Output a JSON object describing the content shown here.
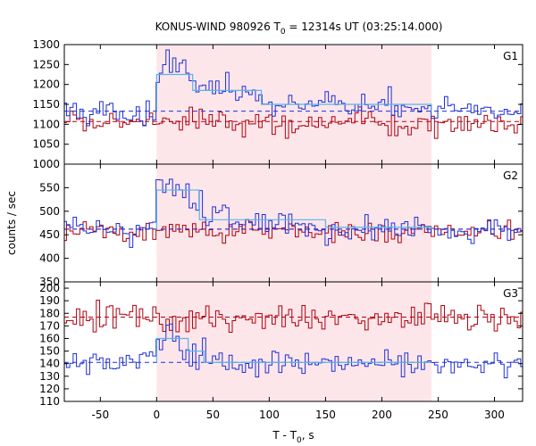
{
  "chart_data": {
    "type": "line",
    "title": "KONUS-WIND 980926 T0 = 12314s UT (03:25:14.000)",
    "title_parts": {
      "pre": "KONUS-WIND 980926 T",
      "sub": "0",
      "post": " = 12314s UT (03:25:14.000)"
    },
    "xlabel_parts": {
      "pre": "T - T",
      "sub": "0",
      "post": ", s"
    },
    "ylabel": "counts / sec",
    "xlim": [
      -82,
      325
    ],
    "xticks": [
      "-50",
      "0",
      "50",
      "100",
      "150",
      "200",
      "250",
      "300"
    ],
    "x_tick_values": [
      -50,
      0,
      50,
      100,
      150,
      200,
      250,
      300
    ],
    "shaded_interval": [
      0,
      244
    ],
    "bin_width": 2.944,
    "colors": {
      "source": "#1f2fd6",
      "background": "#b0000e",
      "model": "#5ab4e8",
      "shade": "#fde6ea"
    },
    "panels": [
      {
        "label": "G1",
        "ylim": [
          1000,
          1300
        ],
        "yticks": [
          "1000",
          "1050",
          "1100",
          "1150",
          "1200",
          "1250",
          "1300"
        ],
        "y_tick_values": [
          1000,
          1050,
          1100,
          1150,
          1200,
          1250,
          1300
        ],
        "source_base": 1132,
        "source_noise": 15,
        "background_base": 1105,
        "background_noise": 15,
        "source_fit_level": 1133,
        "background_fit_level": 1107,
        "pulse_profile": [
          {
            "x0": 0,
            "x1": 10,
            "level": 1225
          },
          {
            "x0": 10,
            "x1": 30,
            "level": 1230
          },
          {
            "x0": 30,
            "x1": 50,
            "level": 1200
          },
          {
            "x0": 50,
            "x1": 70,
            "level": 1190
          },
          {
            "x0": 70,
            "x1": 90,
            "level": 1175
          },
          {
            "x0": 90,
            "x1": 100,
            "level": 1165
          },
          {
            "x0": 100,
            "x1": 244,
            "level": 1148
          }
        ],
        "model_steps": [
          {
            "x0": 0,
            "x1": 32,
            "level": 1225
          },
          {
            "x0": 32,
            "x1": 93,
            "level": 1185
          },
          {
            "x0": 93,
            "x1": 244,
            "level": 1150
          }
        ]
      },
      {
        "label": "G2",
        "ylim": [
          350,
          600
        ],
        "yticks": [
          "350",
          "400",
          "450",
          "500",
          "550"
        ],
        "y_tick_values": [
          350,
          400,
          450,
          500,
          550
        ],
        "source_base": 461,
        "source_noise": 12,
        "background_base": 458,
        "background_noise": 11,
        "source_fit_level": 462,
        "background_fit_level": 462,
        "pulse_profile": [
          {
            "x0": 0,
            "x1": 12,
            "level": 545
          },
          {
            "x0": 12,
            "x1": 28,
            "level": 560
          },
          {
            "x0": 28,
            "x1": 40,
            "level": 520
          },
          {
            "x0": 40,
            "x1": 60,
            "level": 490
          },
          {
            "x0": 60,
            "x1": 100,
            "level": 480
          },
          {
            "x0": 100,
            "x1": 150,
            "level": 470
          }
        ],
        "model_steps": [
          {
            "x0": 0,
            "x1": 38,
            "level": 545
          },
          {
            "x0": 38,
            "x1": 150,
            "level": 482
          },
          {
            "x0": 150,
            "x1": 244,
            "level": 466
          }
        ]
      },
      {
        "label": "G3",
        "ylim": [
          110,
          205
        ],
        "yticks": [
          "110",
          "120",
          "130",
          "140",
          "150",
          "160",
          "170",
          "180",
          "190",
          "200"
        ],
        "y_tick_values": [
          110,
          120,
          130,
          140,
          150,
          160,
          170,
          180,
          190,
          200
        ],
        "source_base": 140,
        "source_noise": 5,
        "background_base": 177,
        "background_noise": 6,
        "source_fit_level": 141,
        "background_fit_level": 177,
        "pulse_profile": [
          {
            "x0": 0,
            "x1": 10,
            "level": 162
          },
          {
            "x0": 10,
            "x1": 20,
            "level": 165
          },
          {
            "x0": 20,
            "x1": 35,
            "level": 152
          },
          {
            "x0": 35,
            "x1": 60,
            "level": 144
          }
        ],
        "model_steps": [
          {
            "x0": 0,
            "x1": 28,
            "level": 160
          },
          {
            "x0": 28,
            "x1": 42,
            "level": 150
          },
          {
            "x0": 42,
            "x1": 244,
            "level": 141
          }
        ]
      }
    ]
  }
}
